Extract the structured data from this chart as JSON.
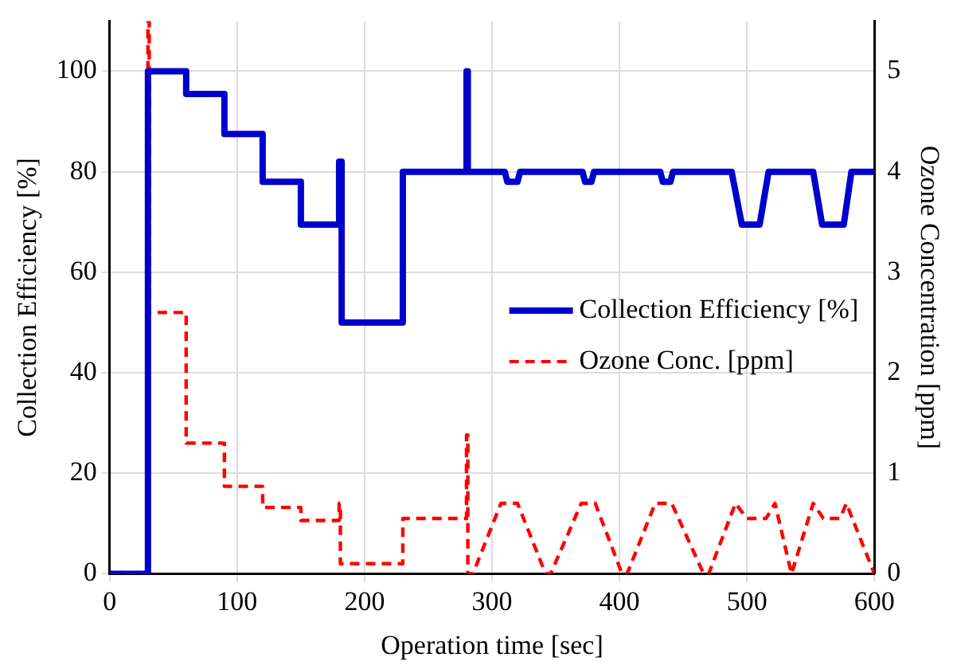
{
  "chart_data": {
    "type": "line",
    "xlabel": "Operation time [sec]",
    "ylabel": "Collection Efficiency [%]",
    "y2label": "Ozone Concentration [ppm]",
    "xlim": [
      0,
      600
    ],
    "xticks": [
      0,
      100,
      200,
      300,
      400,
      500,
      600
    ],
    "ylim": [
      0,
      110
    ],
    "yticks": [
      0,
      20,
      40,
      60,
      80,
      100
    ],
    "y2lim": [
      0,
      5.5
    ],
    "y2ticks": [
      0,
      1,
      2,
      3,
      4,
      5
    ],
    "grid": true,
    "legend": "right",
    "marker": "none",
    "series": [
      {
        "name": "Collection Efficiency [%]",
        "color": "#0000cc",
        "line_style": "solid",
        "x": [
          0,
          30,
          30,
          60,
          60,
          90,
          90,
          120,
          120,
          150,
          150,
          180,
          180,
          182,
          182,
          230,
          230,
          280,
          280,
          281,
          281,
          310,
          312,
          320,
          322,
          371,
          373,
          378,
          380,
          432,
          434,
          440,
          442,
          488,
          496,
          510,
          517,
          552,
          559,
          576,
          582,
          600
        ],
        "values": [
          0,
          0,
          100,
          100,
          95.5,
          95.5,
          87.5,
          87.5,
          78,
          78,
          69.5,
          69.5,
          82,
          82,
          50,
          50,
          80,
          80,
          100,
          100,
          80,
          80,
          78,
          78,
          80,
          80,
          78,
          78,
          80,
          80,
          78,
          78,
          80,
          80,
          69.5,
          69.5,
          80,
          80,
          69.5,
          69.5,
          80,
          80
        ]
      },
      {
        "name": "Ozone Conc. [ppm]",
        "color": "#ff0000",
        "line_style": "dashed",
        "axis": "y2",
        "x": [
          0,
          30,
          30,
          31,
          31,
          60,
          60,
          90,
          90,
          120,
          120,
          150,
          150,
          180,
          180,
          181,
          181,
          230,
          230,
          280,
          280,
          281,
          281,
          285,
          307,
          320,
          342,
          346,
          370,
          381,
          402,
          406,
          428,
          441,
          466,
          470,
          491,
          500,
          515,
          522,
          535,
          552,
          560,
          573,
          578,
          600
        ],
        "values": [
          0,
          0,
          5.5,
          5.5,
          2.6,
          2.6,
          1.3,
          1.3,
          0.87,
          0.87,
          0.66,
          0.66,
          0.53,
          0.53,
          0.7,
          0.7,
          0.1,
          0.1,
          0.55,
          0.55,
          1.38,
          1.38,
          0,
          0,
          0.7,
          0.7,
          0,
          0,
          0.7,
          0.7,
          0,
          0,
          0.7,
          0.7,
          0,
          0,
          0.7,
          0.55,
          0.55,
          0.7,
          0,
          0.7,
          0.55,
          0.55,
          0.7,
          0
        ]
      }
    ]
  }
}
